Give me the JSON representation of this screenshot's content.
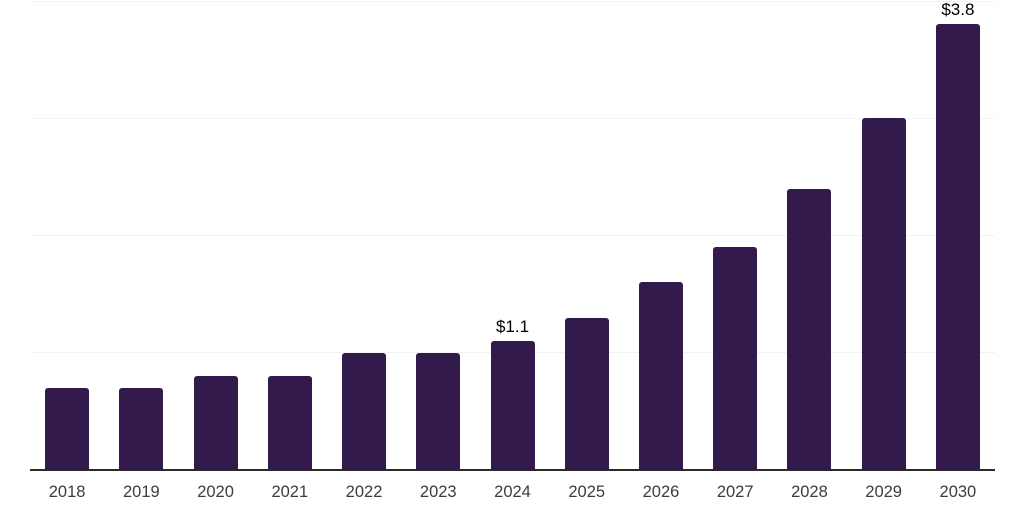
{
  "chart_data": {
    "type": "bar",
    "categories": [
      "2018",
      "2019",
      "2020",
      "2021",
      "2022",
      "2023",
      "2024",
      "2025",
      "2026",
      "2027",
      "2028",
      "2029",
      "2030"
    ],
    "values": [
      0.7,
      0.7,
      0.8,
      0.8,
      1.0,
      1.0,
      1.1,
      1.3,
      1.6,
      1.9,
      2.4,
      3.0,
      3.8
    ],
    "bar_labels": [
      "",
      "",
      "",
      "",
      "",
      "",
      "$1.1",
      "",
      "",
      "",
      "",
      "",
      "$3.8"
    ],
    "title": "",
    "xlabel": "",
    "ylabel": "",
    "ylim": [
      0,
      4
    ],
    "gridline_values": [
      1,
      2,
      3,
      4
    ],
    "grid": "horizontal-only",
    "legend_position": "none",
    "y_axis_tick_labels_visible": false
  },
  "styles": {
    "bar_color": "#331A4D",
    "axis_line_color": "#2B2B2B",
    "gridline_color": "#F2F2F2",
    "tick_label_color": "#3C3C3C",
    "value_label_color": "#000000",
    "background_color": "#FFFFFF"
  }
}
